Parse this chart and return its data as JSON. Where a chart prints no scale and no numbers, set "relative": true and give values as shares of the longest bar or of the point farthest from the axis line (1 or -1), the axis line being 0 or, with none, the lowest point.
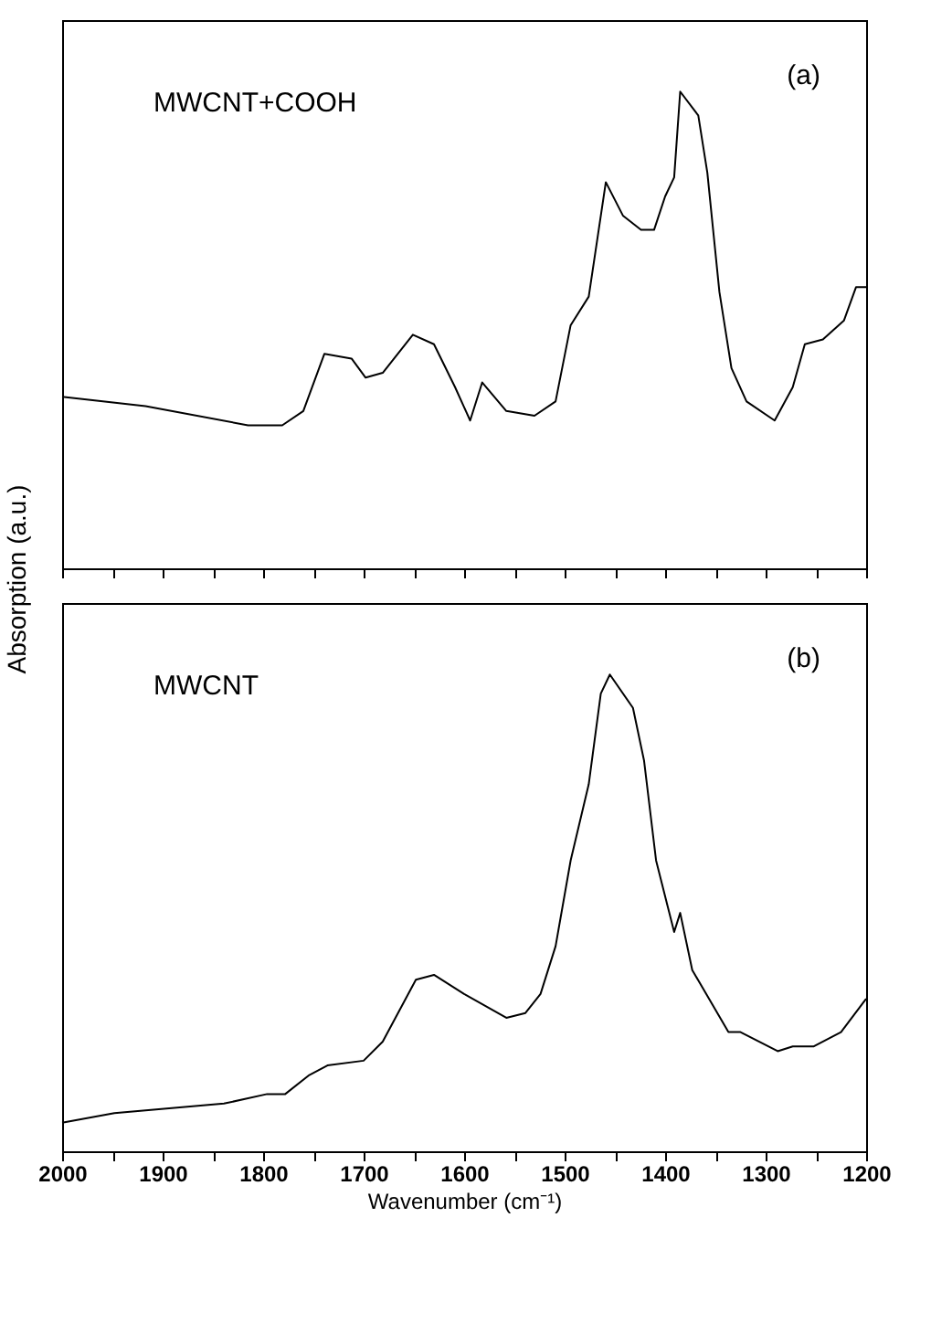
{
  "chart_data": [
    {
      "type": "line",
      "relative": true,
      "ylabel": "Absorption (a.u.)",
      "annotations": [
        "MWCNT+COOH",
        "(a)"
      ],
      "tick_labels": false,
      "xlim": [
        2000,
        1200
      ],
      "xticks": [
        {
          "value": 2000,
          "label": null
        },
        {
          "value": 1950,
          "label": null
        },
        {
          "value": 1900,
          "label": null
        },
        {
          "value": 1850,
          "label": null
        },
        {
          "value": 1800,
          "label": null
        },
        {
          "value": 1750,
          "label": null
        },
        {
          "value": 1700,
          "label": null
        },
        {
          "value": 1650,
          "label": null
        },
        {
          "value": 1600,
          "label": null
        },
        {
          "value": 1550,
          "label": null
        },
        {
          "value": 1500,
          "label": null
        },
        {
          "value": 1450,
          "label": null
        },
        {
          "value": 1400,
          "label": null
        },
        {
          "value": 1350,
          "label": null
        },
        {
          "value": 1300,
          "label": null
        },
        {
          "value": 1250,
          "label": null
        },
        {
          "value": 1200,
          "label": null
        }
      ],
      "marker": "none",
      "line_style": "solid",
      "grid": false,
      "series": [
        {
          "color": "#000000",
          "x": [
            2000,
            1917,
            1815,
            1781,
            1760,
            1739,
            1712,
            1698,
            1681,
            1651,
            1630,
            1609,
            1594,
            1582,
            1558,
            1530,
            1509,
            1494,
            1476,
            1459,
            1442,
            1424,
            1411,
            1400,
            1391,
            1385,
            1367,
            1358,
            1346,
            1334,
            1319,
            1291,
            1273,
            1261,
            1243,
            1222,
            1210,
            1200
          ],
          "values": [
            0.36,
            0.34,
            0.3,
            0.3,
            0.33,
            0.45,
            0.44,
            0.4,
            0.41,
            0.49,
            0.47,
            0.38,
            0.31,
            0.39,
            0.33,
            0.32,
            0.35,
            0.51,
            0.57,
            0.81,
            0.74,
            0.71,
            0.71,
            0.78,
            0.82,
            1.0,
            0.95,
            0.83,
            0.58,
            0.42,
            0.35,
            0.31,
            0.38,
            0.47,
            0.48,
            0.52,
            0.59,
            0.59
          ]
        }
      ]
    },
    {
      "type": "line",
      "relative": true,
      "xlabel": "Wavenumber (cm⁻¹)",
      "annotations": [
        "MWCNT",
        "(b)"
      ],
      "tick_labels": "x",
      "xlim": [
        2000,
        1200
      ],
      "xticks": [
        2000,
        {
          "value": 1950,
          "label": null
        },
        1900,
        {
          "value": 1850,
          "label": null
        },
        1800,
        {
          "value": 1750,
          "label": null
        },
        1700,
        {
          "value": 1650,
          "label": null
        },
        1600,
        {
          "value": 1550,
          "label": null
        },
        1500,
        {
          "value": 1450,
          "label": null
        },
        1400,
        {
          "value": 1350,
          "label": null
        },
        1300,
        {
          "value": 1250,
          "label": null
        },
        1200
      ],
      "marker": "none",
      "line_style": "solid",
      "grid": false,
      "series": [
        {
          "color": "#000000",
          "x": [
            2000,
            1948,
            1839,
            1796,
            1778,
            1754,
            1736,
            1700,
            1681,
            1648,
            1630,
            1600,
            1558,
            1539,
            1524,
            1509,
            1494,
            1476,
            1464,
            1455,
            1432,
            1421,
            1409,
            1397,
            1391,
            1385,
            1373,
            1337,
            1325,
            1288,
            1273,
            1252,
            1225,
            1200
          ],
          "values": [
            0.06,
            0.08,
            0.1,
            0.12,
            0.12,
            0.16,
            0.18,
            0.19,
            0.23,
            0.36,
            0.37,
            0.33,
            0.28,
            0.29,
            0.33,
            0.43,
            0.61,
            0.77,
            0.96,
            1.0,
            0.93,
            0.82,
            0.61,
            0.51,
            0.46,
            0.5,
            0.38,
            0.25,
            0.25,
            0.21,
            0.22,
            0.22,
            0.25,
            0.32
          ]
        }
      ]
    }
  ]
}
